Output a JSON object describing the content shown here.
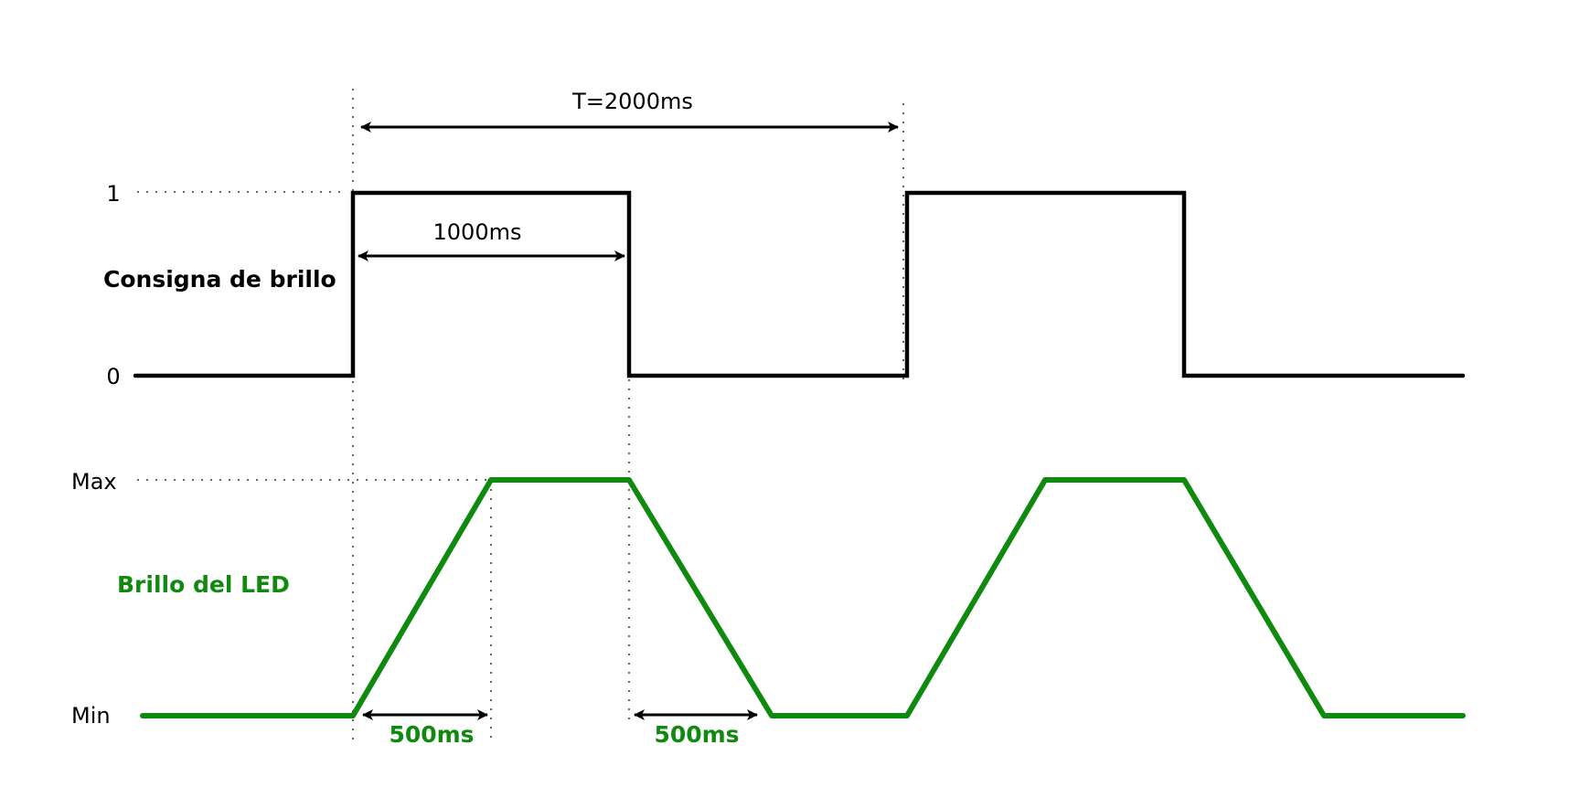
{
  "colors": {
    "signal": "#000000",
    "brightness": "#0f8a0f",
    "guide": "#333333"
  },
  "signal": {
    "label": "Consigna de brillo",
    "level_high": "1",
    "level_low": "0"
  },
  "brightness": {
    "label": "Brillo del LED",
    "level_max": "Max",
    "level_min": "Min"
  },
  "annotations": {
    "period": "T=2000ms",
    "pulse_width": "1000ms",
    "ramp_up": "500ms",
    "ramp_down": "500ms"
  },
  "timing": {
    "period_ms": 2000,
    "pulse_ms": 1000,
    "ramp_ms": 500
  }
}
